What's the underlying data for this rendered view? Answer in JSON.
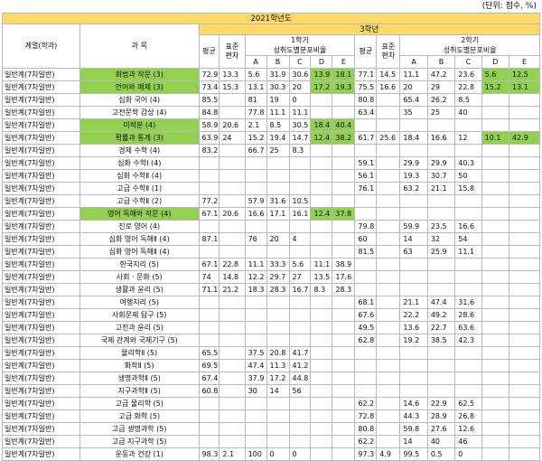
{
  "unit_note": "(단위: 점수, %)",
  "header": {
    "year": "2021학년도",
    "grade": "3학년",
    "dept": "계열(학과)",
    "subject": "과 목",
    "sem1": "1학기",
    "sem2": "2학기",
    "avg": "평균",
    "sd1": "표준",
    "sd2": "편차",
    "dist": "성취도별분포비율",
    "grades": [
      "A",
      "B",
      "C",
      "D",
      "E"
    ]
  },
  "highlight_color": "#92d050",
  "rows": [
    {
      "dept": "일반계(7차일반)",
      "subject": "화법과 작문 (3)",
      "hl_subject": true,
      "s1": [
        "72.9",
        "13.3",
        "5.6",
        "31.9",
        "30.6",
        "13.9",
        "18.1"
      ],
      "hl1": [
        5,
        6
      ],
      "s2": [
        "77.1",
        "14.5",
        "11.1",
        "47.2",
        "23.6",
        "5.6",
        "12.5"
      ],
      "hl2": [
        5,
        6
      ]
    },
    {
      "dept": "일반계(7차일반)",
      "subject": "언어와 매체 (3)",
      "hl_subject": true,
      "s1": [
        "73.4",
        "15.3",
        "13.1",
        "30.3",
        "20",
        "17.2",
        "19.3"
      ],
      "hl1": [
        5,
        6
      ],
      "s2": [
        "75.5",
        "16.6",
        "20",
        "29",
        "22.8",
        "15.2",
        "13.1"
      ],
      "hl2": [
        5,
        6
      ]
    },
    {
      "dept": "일반계(7차일반)",
      "subject": "심화 국어 (4)",
      "s1": [
        "85.5",
        "",
        "81",
        "19",
        "0",
        "",
        ""
      ],
      "s2": [
        "80.8",
        "",
        "65.4",
        "26.2",
        "8.5",
        "",
        ""
      ]
    },
    {
      "dept": "일반계(7차일반)",
      "subject": "고전문학 감상 (4)",
      "s1": [
        "84.8",
        "",
        "77.8",
        "11.1",
        "11.1",
        "",
        ""
      ],
      "s2": [
        "63.4",
        "",
        "35",
        "25",
        "40",
        "",
        ""
      ]
    },
    {
      "dept": "일반계(7차일반)",
      "subject": "미적분 (4)",
      "hl_subject": true,
      "s1": [
        "58.9",
        "20.6",
        "2.1",
        "8.5",
        "30.5",
        "18.4",
        "40.4"
      ],
      "hl1": [
        5,
        6
      ],
      "s2": [
        "",
        "",
        "",
        "",
        "",
        "",
        ""
      ]
    },
    {
      "dept": "일반계(7차일반)",
      "subject": "확률과 통계 (3)",
      "hl_subject": true,
      "s1": [
        "63.9",
        "24",
        "15.2",
        "19.4",
        "14.7",
        "12.4",
        "38.2"
      ],
      "hl1": [
        5,
        6
      ],
      "s2": [
        "61.7",
        "25.6",
        "18.4",
        "16.6",
        "12",
        "10.1",
        "42.9"
      ],
      "hl2": [
        5,
        6
      ]
    },
    {
      "dept": "일반계(7차일반)",
      "subject": "경제 수학 (4)",
      "s1": [
        "83.2",
        "",
        "66.7",
        "25",
        "8.3",
        "",
        ""
      ],
      "s2": [
        "",
        "",
        "",
        "",
        "",
        "",
        ""
      ]
    },
    {
      "dept": "일반계(7차일반)",
      "subject": "심화 수학Ⅰ (4)",
      "s1": [
        "",
        "",
        "",
        "",
        "",
        "",
        ""
      ],
      "s2": [
        "59.1",
        "",
        "29.9",
        "29.9",
        "40.3",
        "",
        ""
      ]
    },
    {
      "dept": "일반계(7차일반)",
      "subject": "심화 수학Ⅱ (4)",
      "s1": [
        "",
        "",
        "",
        "",
        "",
        "",
        ""
      ],
      "s2": [
        "56.1",
        "",
        "19.3",
        "30.7",
        "50",
        "",
        ""
      ]
    },
    {
      "dept": "일반계(7차일반)",
      "subject": "고급 수학Ⅱ (1)",
      "s1": [
        "",
        "",
        "",
        "",
        "",
        "",
        ""
      ],
      "s2": [
        "76.1",
        "",
        "63.2",
        "21.1",
        "15.8",
        "",
        ""
      ]
    },
    {
      "dept": "일반계(7차일반)",
      "subject": "고급 수학Ⅱ (2)",
      "s1": [
        "77.2",
        "",
        "57.9",
        "31.6",
        "10.5",
        "",
        ""
      ],
      "s2": [
        "",
        "",
        "",
        "",
        "",
        "",
        ""
      ]
    },
    {
      "dept": "일반계(7차일반)",
      "subject": "영어 독해와 작문 (4)",
      "hl_subject": true,
      "s1": [
        "67.1",
        "20.6",
        "16.6",
        "17.1",
        "16.1",
        "12.4",
        "37.8"
      ],
      "hl1": [
        5,
        6
      ],
      "s2": [
        "",
        "",
        "",
        "",
        "",
        "",
        ""
      ]
    },
    {
      "dept": "일반계(7차일반)",
      "subject": "진로 영어 (4)",
      "s1": [
        "",
        "",
        "",
        "",
        "",
        "",
        ""
      ],
      "s2": [
        "79.8",
        "",
        "59.9",
        "23.5",
        "16.6",
        "",
        ""
      ]
    },
    {
      "dept": "일반계(7차일반)",
      "subject": "심화 영어 독해Ⅱ (4)",
      "s1": [
        "87.1",
        "",
        "76",
        "20",
        "4",
        "",
        ""
      ],
      "s2": [
        "60",
        "",
        "14",
        "32",
        "54",
        "",
        ""
      ]
    },
    {
      "dept": "일반계(7차일반)",
      "subject": "심화 영어 독해Ⅱ (4)",
      "s1": [
        "",
        "",
        "",
        "",
        "",
        "",
        ""
      ],
      "s2": [
        "81.5",
        "",
        "63",
        "25.9",
        "11.1",
        "",
        ""
      ]
    },
    {
      "dept": "일반계(7차일반)",
      "subject": "한국지리 (5)",
      "s1": [
        "67.1",
        "22.8",
        "11.1",
        "33.3",
        "5.6",
        "11.1",
        "38.9"
      ],
      "s2": [
        "",
        "",
        "",
        "",
        "",
        "",
        ""
      ]
    },
    {
      "dept": "일반계(7차일반)",
      "subject": "사회 · 문화 (5)",
      "s1": [
        "74",
        "14.8",
        "12.2",
        "29.7",
        "27",
        "13.5",
        "17.6"
      ],
      "s2": [
        "",
        "",
        "",
        "",
        "",
        "",
        ""
      ]
    },
    {
      "dept": "일반계(7차일반)",
      "subject": "생활과 윤리 (5)",
      "s1": [
        "71.1",
        "21.2",
        "18.3",
        "28.3",
        "16.7",
        "8.3",
        "28.3"
      ],
      "s2": [
        "",
        "",
        "",
        "",
        "",
        "",
        ""
      ]
    },
    {
      "dept": "일반계(7차일반)",
      "subject": "여행지리 (5)",
      "s1": [
        "",
        "",
        "",
        "",
        "",
        "",
        ""
      ],
      "s2": [
        "68.1",
        "",
        "21.1",
        "47.4",
        "31.6",
        "",
        ""
      ]
    },
    {
      "dept": "일반계(7차일반)",
      "subject": "사회문제 탐구 (5)",
      "s1": [
        "",
        "",
        "",
        "",
        "",
        "",
        ""
      ],
      "s2": [
        "67.6",
        "",
        "22.2",
        "49.2",
        "28.6",
        "",
        ""
      ]
    },
    {
      "dept": "일반계(7차일반)",
      "subject": "고전과 윤리 (5)",
      "s1": [
        "",
        "",
        "",
        "",
        "",
        "",
        ""
      ],
      "s2": [
        "49.5",
        "",
        "13.6",
        "22.7",
        "63.6",
        "",
        ""
      ]
    },
    {
      "dept": "일반계(7차일반)",
      "subject": "국제 관계와 국제기구 (5)",
      "s1": [
        "",
        "",
        "",
        "",
        "",
        "",
        ""
      ],
      "s2": [
        "62.8",
        "",
        "19.2",
        "38.5",
        "42.3",
        "",
        ""
      ]
    },
    {
      "dept": "일반계(7차일반)",
      "subject": "물리학Ⅱ (5)",
      "s1": [
        "65.5",
        "",
        "37.5",
        "20.8",
        "41.7",
        "",
        ""
      ],
      "s2": [
        "",
        "",
        "",
        "",
        "",
        "",
        ""
      ]
    },
    {
      "dept": "일반계(7차일반)",
      "subject": "화학Ⅱ (5)",
      "s1": [
        "69.5",
        "",
        "47.4",
        "11.3",
        "41.2",
        "",
        ""
      ],
      "s2": [
        "",
        "",
        "",
        "",
        "",
        "",
        ""
      ]
    },
    {
      "dept": "일반계(7차일반)",
      "subject": "생명과학Ⅱ (5)",
      "s1": [
        "67.4",
        "",
        "37.9",
        "17.2",
        "44.8",
        "",
        ""
      ],
      "s2": [
        "",
        "",
        "",
        "",
        "",
        "",
        ""
      ]
    },
    {
      "dept": "일반계(7차일반)",
      "subject": "지구과학Ⅱ (5)",
      "s1": [
        "60.8",
        "",
        "30",
        "14",
        "56",
        "",
        ""
      ],
      "s2": [
        "",
        "",
        "",
        "",
        "",
        "",
        ""
      ]
    },
    {
      "dept": "일반계(7차일반)",
      "subject": "고급 물리학 (5)",
      "s1": [
        "",
        "",
        "",
        "",
        "",
        "",
        ""
      ],
      "s2": [
        "62.2",
        "",
        "14.6",
        "22.9",
        "62.5",
        "",
        ""
      ]
    },
    {
      "dept": "일반계(7차일반)",
      "subject": "고급 화학 (5)",
      "s1": [
        "",
        "",
        "",
        "",
        "",
        "",
        ""
      ],
      "s2": [
        "72.8",
        "",
        "44.3",
        "28.9",
        "26.8",
        "",
        ""
      ]
    },
    {
      "dept": "일반계(7차일반)",
      "subject": "고급 생명과학 (5)",
      "s1": [
        "",
        "",
        "",
        "",
        "",
        "",
        ""
      ],
      "s2": [
        "80.8",
        "",
        "59.8",
        "27.6",
        "12.6",
        "",
        ""
      ]
    },
    {
      "dept": "일반계(7차일반)",
      "subject": "고급 지구과학 (5)",
      "s1": [
        "",
        "",
        "",
        "",
        "",
        "",
        ""
      ],
      "s2": [
        "62.2",
        "",
        "14",
        "40",
        "46",
        "",
        ""
      ]
    },
    {
      "dept": "일반계(7차일반)",
      "subject": "운동과 건강 (1)",
      "s1": [
        "98.3",
        "2.1",
        "100",
        "0",
        "0",
        "",
        ""
      ],
      "s2": [
        "97.3",
        "4.9",
        "99.5",
        "0.5",
        "0",
        "",
        ""
      ]
    }
  ]
}
